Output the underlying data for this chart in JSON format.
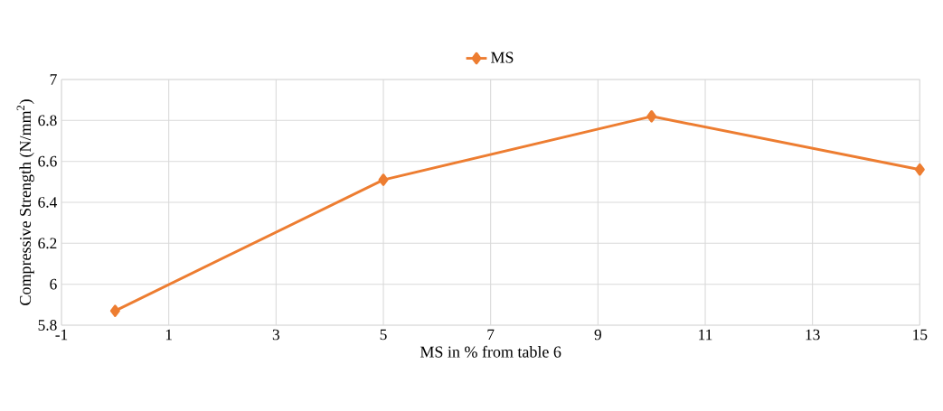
{
  "chart_data": {
    "type": "line",
    "xlabel": "MS in % from table 6",
    "ylabel": "Compressive Strength (N/mm$^{2}$)",
    "x": [
      0,
      5,
      10,
      15
    ],
    "series": [
      {
        "name": "MS",
        "color": "#ed7d31",
        "values": [
          5.87,
          6.51,
          6.82,
          6.56
        ]
      }
    ],
    "xlim": [
      -1,
      15
    ],
    "xticks": [
      -1,
      1,
      3,
      5,
      7,
      9,
      11,
      13,
      15
    ],
    "ylim": [
      5.8,
      7
    ],
    "yticks": [
      5.8,
      6,
      6.2,
      6.4,
      6.6,
      6.8,
      7
    ],
    "grid": true,
    "legend": "top",
    "marker": "diamond",
    "line_style": "solid"
  }
}
